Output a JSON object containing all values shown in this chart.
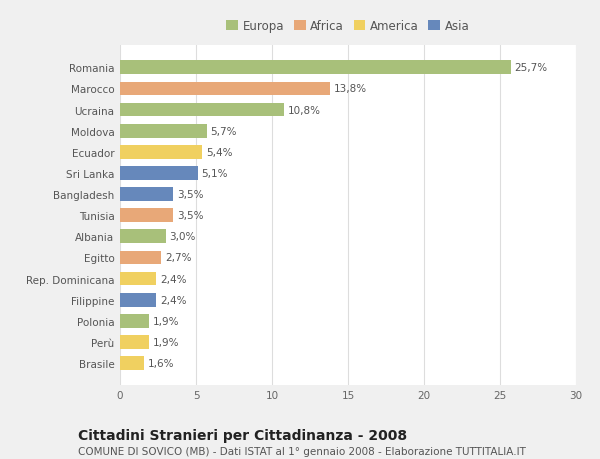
{
  "countries": [
    "Romania",
    "Marocco",
    "Ucraina",
    "Moldova",
    "Ecuador",
    "Sri Lanka",
    "Bangladesh",
    "Tunisia",
    "Albania",
    "Egitto",
    "Rep. Dominicana",
    "Filippine",
    "Polonia",
    "Perù",
    "Brasile"
  ],
  "values": [
    25.7,
    13.8,
    10.8,
    5.7,
    5.4,
    5.1,
    3.5,
    3.5,
    3.0,
    2.7,
    2.4,
    2.4,
    1.9,
    1.9,
    1.6
  ],
  "labels": [
    "25,7%",
    "13,8%",
    "10,8%",
    "5,7%",
    "5,4%",
    "5,1%",
    "3,5%",
    "3,5%",
    "3,0%",
    "2,7%",
    "2,4%",
    "2,4%",
    "1,9%",
    "1,9%",
    "1,6%"
  ],
  "continents": [
    "Europa",
    "Africa",
    "Europa",
    "Europa",
    "America",
    "Asia",
    "Asia",
    "Africa",
    "Europa",
    "Africa",
    "America",
    "Asia",
    "Europa",
    "America",
    "America"
  ],
  "continent_colors": {
    "Europa": "#a8c07a",
    "Africa": "#e8a878",
    "America": "#f0d060",
    "Asia": "#6688bb"
  },
  "legend_order": [
    "Europa",
    "Africa",
    "America",
    "Asia"
  ],
  "xlim": [
    0,
    30
  ],
  "xticks": [
    0,
    5,
    10,
    15,
    20,
    25,
    30
  ],
  "title": "Cittadini Stranieri per Cittadinanza - 2008",
  "subtitle": "COMUNE DI SOVICO (MB) - Dati ISTAT al 1° gennaio 2008 - Elaborazione TUTTITALIA.IT",
  "bg_color": "#f0f0f0",
  "bar_bg_color": "#ffffff",
  "grid_color": "#dddddd",
  "title_fontsize": 10,
  "subtitle_fontsize": 7.5,
  "label_fontsize": 7.5,
  "tick_fontsize": 7.5,
  "legend_fontsize": 8.5
}
